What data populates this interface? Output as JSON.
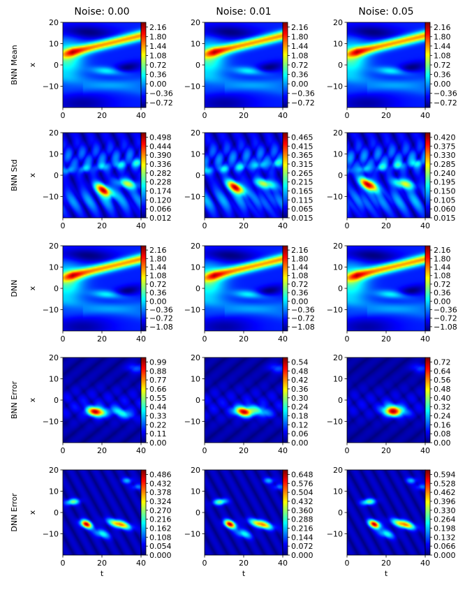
{
  "chart_data": {
    "type": "heatmap",
    "colormap": "jet",
    "column_titles": [
      "Noise: 0.00",
      "Noise: 0.01",
      "Noise: 0.05"
    ],
    "row_labels": [
      "BNN Mean",
      "BNN Std",
      "DNN",
      "BNN Error",
      "DNN Error"
    ],
    "xlabel": "t",
    "ylabel": "x",
    "xlim": [
      0,
      40
    ],
    "ylim": [
      -20,
      20
    ],
    "x_ticks": [
      "0",
      "20",
      "40"
    ],
    "y_ticks": [
      "20",
      "10",
      "0",
      "−10"
    ],
    "panels": [
      [
        {
          "field": "mean",
          "noise": 0.0,
          "colorbar_ticks": [
            "2.16",
            "1.80",
            "1.44",
            "1.08",
            "0.72",
            "0.36",
            "0.00",
            "−0.36",
            "−0.72"
          ],
          "vmin": -0.9,
          "vmax": 2.34
        },
        {
          "field": "mean",
          "noise": 0.01,
          "colorbar_ticks": [
            "2.16",
            "1.80",
            "1.44",
            "1.08",
            "0.72",
            "0.36",
            "0.00",
            "−0.36",
            "−0.72"
          ],
          "vmin": -0.9,
          "vmax": 2.34
        },
        {
          "field": "mean",
          "noise": 0.05,
          "colorbar_ticks": [
            "2.16",
            "1.80",
            "1.44",
            "1.08",
            "0.72",
            "0.36",
            "0.00",
            "−0.36",
            "−0.72"
          ],
          "vmin": -0.9,
          "vmax": 2.34
        }
      ],
      [
        {
          "field": "std",
          "noise": 0.0,
          "colorbar_ticks": [
            "0.498",
            "0.444",
            "0.390",
            "0.336",
            "0.282",
            "0.228",
            "0.174",
            "0.120",
            "0.066",
            "0.012"
          ],
          "vmin": 0.012,
          "vmax": 0.525
        },
        {
          "field": "std",
          "noise": 0.01,
          "colorbar_ticks": [
            "0.465",
            "0.415",
            "0.365",
            "0.315",
            "0.265",
            "0.215",
            "0.165",
            "0.115",
            "0.065",
            "0.015"
          ],
          "vmin": 0.015,
          "vmax": 0.49
        },
        {
          "field": "std",
          "noise": 0.05,
          "colorbar_ticks": [
            "0.420",
            "0.375",
            "0.330",
            "0.285",
            "0.240",
            "0.195",
            "0.150",
            "0.105",
            "0.060",
            "0.015"
          ],
          "vmin": 0.015,
          "vmax": 0.4425
        }
      ],
      [
        {
          "field": "mean",
          "noise": 0.0,
          "colorbar_ticks": [
            "2.16",
            "1.80",
            "1.44",
            "1.08",
            "0.72",
            "0.36",
            "0.00",
            "−0.36",
            "−0.72",
            "−1.08"
          ],
          "vmin": -1.26,
          "vmax": 2.34
        },
        {
          "field": "mean",
          "noise": 0.01,
          "colorbar_ticks": [
            "2.16",
            "1.80",
            "1.44",
            "1.08",
            "0.72",
            "0.36",
            "0.00",
            "−0.36",
            "−0.72",
            "−1.08"
          ],
          "vmin": -1.26,
          "vmax": 2.34
        },
        {
          "field": "mean",
          "noise": 0.05,
          "colorbar_ticks": [
            "2.16",
            "1.80",
            "1.44",
            "1.08",
            "0.72",
            "0.36",
            "0.00",
            "−0.36",
            "−0.72",
            "−1.08"
          ],
          "vmin": -1.26,
          "vmax": 2.34
        }
      ],
      [
        {
          "field": "error",
          "noise": 0.0,
          "colorbar_ticks": [
            "0.99",
            "0.88",
            "0.77",
            "0.66",
            "0.55",
            "0.44",
            "0.33",
            "0.22",
            "0.11",
            "0.00"
          ],
          "vmin": 0.0,
          "vmax": 1.045
        },
        {
          "field": "error",
          "noise": 0.01,
          "colorbar_ticks": [
            "0.54",
            "0.48",
            "0.42",
            "0.36",
            "0.30",
            "0.24",
            "0.18",
            "0.12",
            "0.06",
            "0.00"
          ],
          "vmin": 0.0,
          "vmax": 0.57
        },
        {
          "field": "error",
          "noise": 0.05,
          "colorbar_ticks": [
            "0.72",
            "0.64",
            "0.56",
            "0.48",
            "0.40",
            "0.32",
            "0.24",
            "0.16",
            "0.08",
            "0.00"
          ],
          "vmin": 0.0,
          "vmax": 0.76
        }
      ],
      [
        {
          "field": "dnn_error",
          "noise": 0.0,
          "colorbar_ticks": [
            "0.486",
            "0.432",
            "0.378",
            "0.324",
            "0.270",
            "0.216",
            "0.162",
            "0.108",
            "0.054",
            "0.000"
          ],
          "vmin": 0.0,
          "vmax": 0.513
        },
        {
          "field": "dnn_error",
          "noise": 0.01,
          "colorbar_ticks": [
            "0.648",
            "0.576",
            "0.504",
            "0.432",
            "0.360",
            "0.288",
            "0.216",
            "0.144",
            "0.072",
            "0.000"
          ],
          "vmin": 0.0,
          "vmax": 0.684
        },
        {
          "field": "dnn_error",
          "noise": 0.05,
          "colorbar_ticks": [
            "0.594",
            "0.528",
            "0.462",
            "0.396",
            "0.330",
            "0.264",
            "0.198",
            "0.132",
            "0.066",
            "0.000"
          ],
          "vmin": 0.0,
          "vmax": 0.627
        }
      ]
    ]
  }
}
